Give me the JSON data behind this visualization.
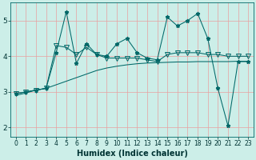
{
  "x": [
    0,
    1,
    2,
    3,
    4,
    5,
    6,
    7,
    8,
    9,
    10,
    11,
    12,
    13,
    14,
    15,
    16,
    17,
    18,
    19,
    20,
    21,
    22,
    23
  ],
  "line1": [
    2.95,
    3.0,
    3.05,
    3.1,
    4.1,
    5.25,
    3.8,
    4.35,
    4.05,
    4.0,
    4.35,
    4.5,
    4.1,
    3.95,
    3.9,
    5.1,
    4.85,
    5.0,
    5.2,
    4.5,
    3.1,
    2.05,
    3.85,
    3.85
  ],
  "line2": [
    2.95,
    3.0,
    3.05,
    3.1,
    4.3,
    4.25,
    4.05,
    4.25,
    4.05,
    3.95,
    3.95,
    3.95,
    3.95,
    3.9,
    3.85,
    4.05,
    4.1,
    4.1,
    4.1,
    4.05,
    4.05,
    4.0,
    4.0,
    4.0
  ],
  "line3": [
    2.9,
    2.97,
    3.05,
    3.1,
    3.2,
    3.3,
    3.4,
    3.5,
    3.6,
    3.67,
    3.72,
    3.76,
    3.79,
    3.81,
    3.82,
    3.83,
    3.84,
    3.84,
    3.85,
    3.85,
    3.85,
    3.85,
    3.86,
    3.86
  ],
  "bg_color": "#cceee8",
  "grid_color": "#e8a0a0",
  "line_color": "#006868",
  "xlabel": "Humidex (Indice chaleur)",
  "xlim_min": -0.5,
  "xlim_max": 23.5,
  "ylim_min": 1.75,
  "ylim_max": 5.5,
  "yticks": [
    2,
    3,
    4,
    5
  ],
  "xticks": [
    0,
    1,
    2,
    3,
    4,
    5,
    6,
    7,
    8,
    9,
    10,
    11,
    12,
    13,
    14,
    15,
    16,
    17,
    18,
    19,
    20,
    21,
    22,
    23
  ],
  "tick_fontsize": 5.5,
  "xlabel_fontsize": 7.0,
  "ytick_fontsize": 6.5,
  "linewidth": 0.75,
  "marker_size_star": 3.5,
  "marker_size_tri": 4.0
}
